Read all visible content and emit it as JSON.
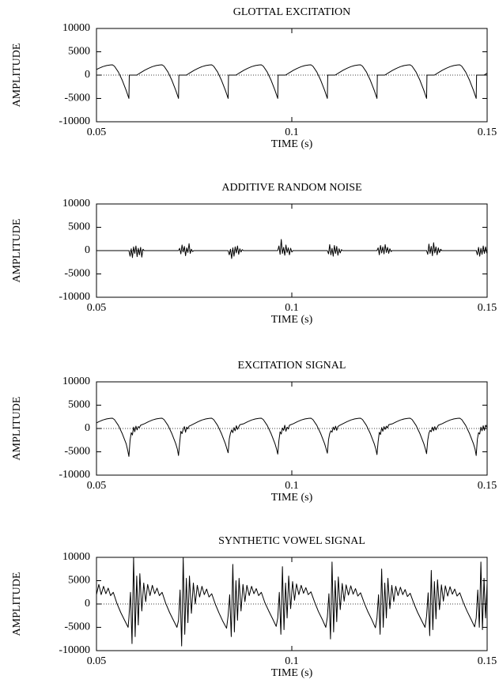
{
  "chart_data": [
    {
      "type": "line",
      "title": "GLOTTAL EXCITATION",
      "xlabel": "TIME (s)",
      "ylabel": "AMPLITUDE",
      "color": "#000000",
      "zero_line": true,
      "xlim": [
        0.05,
        0.15
      ],
      "ylim": [
        -10000,
        10000
      ],
      "xticks": [
        0.05,
        0.1,
        0.15
      ],
      "yticks": [
        -10000,
        -5000,
        0,
        5000,
        10000
      ],
      "x": [
        0.05,
        0.0506,
        0.0516,
        0.0526,
        0.0536,
        0.0541,
        0.0546,
        0.0556,
        0.0566,
        0.0576,
        0.0583,
        0.0584,
        0.0603,
        0.0613,
        0.0623,
        0.0633,
        0.0643,
        0.0653,
        0.0663,
        0.0668,
        0.0673,
        0.0683,
        0.0693,
        0.0703,
        0.071,
        0.0711,
        0.073,
        0.074,
        0.075,
        0.076,
        0.077,
        0.078,
        0.079,
        0.0795,
        0.08,
        0.081,
        0.082,
        0.083,
        0.0837,
        0.0838,
        0.0857,
        0.0867,
        0.0877,
        0.0887,
        0.0897,
        0.0907,
        0.0917,
        0.0922,
        0.0927,
        0.0937,
        0.0947,
        0.0957,
        0.0964,
        0.0965,
        0.0984,
        0.0994,
        0.1004,
        0.1014,
        0.1024,
        0.1034,
        0.1044,
        0.1049,
        0.1054,
        0.1064,
        0.1074,
        0.1084,
        0.1091,
        0.1092,
        0.1111,
        0.1121,
        0.1131,
        0.1141,
        0.1151,
        0.1161,
        0.1171,
        0.1176,
        0.1181,
        0.1191,
        0.1201,
        0.1211,
        0.1218,
        0.1219,
        0.1238,
        0.1248,
        0.1258,
        0.1268,
        0.1278,
        0.1288,
        0.1298,
        0.1303,
        0.1308,
        0.1318,
        0.1328,
        0.1338,
        0.1345,
        0.1346,
        0.1365,
        0.1375,
        0.1385,
        0.1395,
        0.1405,
        0.1415,
        0.1425,
        0.143,
        0.1435,
        0.1445,
        0.1455,
        0.1465,
        0.1472,
        0.1473,
        0.1492,
        0.15
      ],
      "values": [
        1205,
        1458,
        1811,
        2057,
        2184,
        2200,
        1905,
        666,
        -1105,
        -3272,
        -5000,
        0,
        0,
        526,
        1023,
        1458,
        1811,
        2057,
        2184,
        2200,
        1905,
        666,
        -1105,
        -3272,
        -5000,
        0,
        0,
        526,
        1023,
        1458,
        1811,
        2057,
        2184,
        2200,
        1905,
        666,
        -1105,
        -3272,
        -5000,
        0,
        0,
        526,
        1023,
        1458,
        1811,
        2057,
        2184,
        2200,
        1905,
        666,
        -1105,
        -3272,
        -5000,
        0,
        0,
        526,
        1023,
        1458,
        1811,
        2057,
        2184,
        2200,
        1905,
        666,
        -1105,
        -3272,
        -5000,
        0,
        0,
        526,
        1023,
        1458,
        1811,
        2057,
        2184,
        2200,
        1905,
        666,
        -1105,
        -3272,
        -5000,
        0,
        0,
        526,
        1023,
        1458,
        1811,
        2057,
        2184,
        2200,
        1905,
        666,
        -1105,
        -3272,
        -5000,
        0,
        0,
        526,
        1023,
        1458,
        1811,
        2057,
        2184,
        2200,
        1905,
        666,
        -1105,
        -3272,
        -5000,
        0,
        0,
        420
      ]
    },
    {
      "type": "line",
      "title": "ADDITIVE RANDOM NOISE",
      "xlabel": "TIME (s)",
      "ylabel": "AMPLITUDE",
      "color": "#000000",
      "zero_line": true,
      "xlim": [
        0.05,
        0.15
      ],
      "ylim": [
        -10000,
        10000
      ],
      "xticks": [
        0.05,
        0.1,
        0.15
      ],
      "yticks": [
        -10000,
        -5000,
        0,
        5000,
        10000
      ],
      "x": [
        0.05,
        0.0583,
        0.0586,
        0.0589,
        0.0592,
        0.0595,
        0.0598,
        0.0601,
        0.0604,
        0.0607,
        0.061,
        0.0613,
        0.0616,
        0.0619,
        0.0622,
        0.071,
        0.0713,
        0.0716,
        0.0719,
        0.0722,
        0.0725,
        0.0728,
        0.0731,
        0.0734,
        0.0737,
        0.074,
        0.0743,
        0.0746,
        0.0749,
        0.0837,
        0.084,
        0.0843,
        0.0846,
        0.0849,
        0.0852,
        0.0855,
        0.0858,
        0.0861,
        0.0864,
        0.0867,
        0.087,
        0.0873,
        0.0876,
        0.0964,
        0.0967,
        0.097,
        0.0973,
        0.0976,
        0.0979,
        0.0982,
        0.0985,
        0.0988,
        0.0991,
        0.0994,
        0.0997,
        0.1,
        0.1003,
        0.1091,
        0.1094,
        0.1097,
        0.11,
        0.1103,
        0.1106,
        0.1109,
        0.1112,
        0.1115,
        0.1118,
        0.1121,
        0.1124,
        0.1127,
        0.113,
        0.1218,
        0.1221,
        0.1224,
        0.1227,
        0.123,
        0.1233,
        0.1236,
        0.1239,
        0.1242,
        0.1245,
        0.1248,
        0.1251,
        0.1254,
        0.1257,
        0.1345,
        0.1348,
        0.1351,
        0.1354,
        0.1357,
        0.136,
        0.1363,
        0.1366,
        0.1369,
        0.1372,
        0.1375,
        0.1378,
        0.1381,
        0.1384,
        0.1472,
        0.1475,
        0.1478,
        0.1481,
        0.1484,
        0.1487,
        0.149,
        0.1493,
        0.1496,
        0.1499,
        0.15
      ],
      "values": [
        0,
        0,
        -1200,
        400,
        -1500,
        800,
        -600,
        1000,
        -1300,
        500,
        -900,
        700,
        -1400,
        300,
        0,
        0,
        500,
        -700,
        1200,
        -300,
        900,
        -1100,
        600,
        -400,
        1500,
        -600,
        300,
        -200,
        0,
        0,
        -900,
        300,
        -1700,
        600,
        -1200,
        800,
        -500,
        1000,
        -800,
        400,
        -300,
        200,
        0,
        0,
        1000,
        -800,
        2400,
        -600,
        700,
        -1000,
        1200,
        -400,
        600,
        -900,
        500,
        -300,
        0,
        0,
        -700,
        1300,
        -900,
        500,
        -1200,
        1100,
        -600,
        900,
        -1000,
        400,
        -500,
        200,
        0,
        0,
        600,
        -900,
        1100,
        -500,
        800,
        -700,
        1300,
        -400,
        700,
        -600,
        400,
        -200,
        0,
        0,
        -800,
        1400,
        -600,
        900,
        -1100,
        1700,
        -500,
        800,
        -900,
        600,
        -400,
        300,
        0,
        0,
        -900,
        700,
        -1200,
        500,
        -800,
        1000,
        -600,
        800,
        -500,
        300
      ]
    },
    {
      "type": "line",
      "title": "EXCITATION SIGNAL",
      "xlabel": "TIME (s)",
      "ylabel": "AMPLITUDE",
      "color": "#000000",
      "zero_line": true,
      "xlim": [
        0.05,
        0.15
      ],
      "ylim": [
        -10000,
        10000
      ],
      "xticks": [
        0.05,
        0.1,
        0.15
      ],
      "yticks": [
        -10000,
        -5000,
        0,
        5000,
        10000
      ],
      "x": [
        0.05,
        0.0506,
        0.0516,
        0.0526,
        0.0536,
        0.0541,
        0.0546,
        0.0556,
        0.0566,
        0.0576,
        0.058,
        0.0583,
        0.0586,
        0.0589,
        0.0592,
        0.0595,
        0.0598,
        0.0601,
        0.0604,
        0.0607,
        0.061,
        0.0613,
        0.0623,
        0.0633,
        0.0643,
        0.0653,
        0.0663,
        0.0668,
        0.0673,
        0.0683,
        0.0693,
        0.0703,
        0.0707,
        0.071,
        0.0713,
        0.0716,
        0.0719,
        0.0722,
        0.0725,
        0.0728,
        0.0731,
        0.0734,
        0.0737,
        0.074,
        0.075,
        0.076,
        0.077,
        0.078,
        0.079,
        0.0795,
        0.08,
        0.081,
        0.082,
        0.083,
        0.0834,
        0.0837,
        0.084,
        0.0843,
        0.0846,
        0.0849,
        0.0852,
        0.0855,
        0.0858,
        0.0861,
        0.0864,
        0.0867,
        0.0877,
        0.0887,
        0.0897,
        0.0907,
        0.0917,
        0.0922,
        0.0927,
        0.0937,
        0.0947,
        0.0957,
        0.0961,
        0.0964,
        0.0967,
        0.097,
        0.0973,
        0.0976,
        0.0979,
        0.0982,
        0.0985,
        0.0988,
        0.0991,
        0.0994,
        0.1004,
        0.1014,
        0.1024,
        0.1034,
        0.1044,
        0.1049,
        0.1054,
        0.1064,
        0.1074,
        0.1084,
        0.1088,
        0.1091,
        0.1094,
        0.1097,
        0.11,
        0.1103,
        0.1106,
        0.1109,
        0.1112,
        0.1115,
        0.1118,
        0.1121,
        0.1131,
        0.1141,
        0.1151,
        0.1161,
        0.1171,
        0.1176,
        0.1181,
        0.1191,
        0.1201,
        0.1211,
        0.1215,
        0.1218,
        0.1221,
        0.1224,
        0.1227,
        0.123,
        0.1233,
        0.1236,
        0.1239,
        0.1242,
        0.1245,
        0.1248,
        0.1258,
        0.1268,
        0.1278,
        0.1288,
        0.1298,
        0.1303,
        0.1308,
        0.1318,
        0.1328,
        0.1338,
        0.1342,
        0.1345,
        0.1348,
        0.1351,
        0.1354,
        0.1357,
        0.136,
        0.1363,
        0.1366,
        0.1369,
        0.1372,
        0.1375,
        0.1385,
        0.1395,
        0.1405,
        0.1415,
        0.1425,
        0.143,
        0.1435,
        0.1445,
        0.1455,
        0.1465,
        0.1469,
        0.1472,
        0.1475,
        0.1478,
        0.1481,
        0.1484,
        0.1487,
        0.149,
        0.1493,
        0.1496,
        0.1499,
        0.15
      ],
      "values": [
        1205,
        1458,
        1811,
        2057,
        2184,
        2200,
        1905,
        666,
        -1105,
        -3272,
        -4700,
        -6000,
        -2500,
        -900,
        -1400,
        300,
        -700,
        500,
        -300,
        400,
        200,
        700,
        1023,
        1458,
        1811,
        2057,
        2184,
        2200,
        1905,
        666,
        -1105,
        -3272,
        -4400,
        -5800,
        -3000,
        -600,
        -1100,
        -200,
        400,
        -800,
        300,
        -100,
        500,
        600,
        1023,
        1458,
        1811,
        2057,
        2184,
        2200,
        1905,
        666,
        -1105,
        -3272,
        -4400,
        -5200,
        -2200,
        -1000,
        -300,
        -900,
        200,
        -500,
        600,
        -200,
        300,
        800,
        1023,
        1458,
        1811,
        2057,
        2184,
        2200,
        1905,
        666,
        -1105,
        -3272,
        -4400,
        -5500,
        -2600,
        -700,
        -1200,
        100,
        -400,
        700,
        -600,
        300,
        -100,
        700,
        1023,
        1458,
        1811,
        2057,
        2184,
        2200,
        1905,
        666,
        -1105,
        -3272,
        -4400,
        -5300,
        -2400,
        -1100,
        -500,
        -800,
        300,
        -300,
        500,
        -400,
        400,
        600,
        1023,
        1458,
        1811,
        2057,
        2184,
        2200,
        1905,
        666,
        -1105,
        -3272,
        -4400,
        -5600,
        -2800,
        -800,
        -1300,
        200,
        -600,
        400,
        -200,
        500,
        100,
        800,
        1023,
        1458,
        1811,
        2057,
        2184,
        2200,
        1905,
        666,
        -1105,
        -3272,
        -4400,
        -5400,
        -2500,
        -1000,
        -400,
        -700,
        300,
        -500,
        400,
        -300,
        200,
        700,
        1023,
        1458,
        1811,
        2057,
        2184,
        2200,
        1905,
        666,
        -1105,
        -3272,
        -4400,
        -5800,
        -2300,
        -900,
        -1200,
        300,
        -500,
        600,
        -400,
        700,
        300,
        900
      ]
    },
    {
      "type": "line",
      "title": "SYNTHETIC VOWEL SIGNAL",
      "xlabel": "TIME (s)",
      "ylabel": "AMPLITUDE",
      "color": "#000000",
      "zero_line": true,
      "xlim": [
        0.05,
        0.15
      ],
      "ylim": [
        -10000,
        10000
      ],
      "xticks": [
        0.05,
        0.1,
        0.15
      ],
      "yticks": [
        -10000,
        -5000,
        0,
        5000,
        10000
      ],
      "x": [
        0.05,
        0.0506,
        0.0512,
        0.0518,
        0.0524,
        0.053,
        0.0536,
        0.0543,
        0.0552,
        0.0562,
        0.0572,
        0.0581,
        0.0583,
        0.0587,
        0.0591,
        0.0595,
        0.0599,
        0.0603,
        0.0607,
        0.0611,
        0.0616,
        0.0621,
        0.0626,
        0.0631,
        0.0637,
        0.0643,
        0.0649,
        0.0655,
        0.0661,
        0.0668,
        0.0677,
        0.0687,
        0.0697,
        0.0706,
        0.071,
        0.0714,
        0.0718,
        0.0722,
        0.0726,
        0.073,
        0.0734,
        0.0738,
        0.0743,
        0.0748,
        0.0753,
        0.0758,
        0.0764,
        0.077,
        0.0776,
        0.0782,
        0.0788,
        0.0795,
        0.0804,
        0.0814,
        0.0824,
        0.0833,
        0.0837,
        0.0841,
        0.0845,
        0.0849,
        0.0853,
        0.0857,
        0.0861,
        0.0865,
        0.087,
        0.0875,
        0.088,
        0.0885,
        0.0891,
        0.0897,
        0.0903,
        0.0909,
        0.0915,
        0.0922,
        0.0931,
        0.0941,
        0.0951,
        0.096,
        0.0964,
        0.0968,
        0.0972,
        0.0976,
        0.098,
        0.0984,
        0.0988,
        0.0992,
        0.0997,
        0.1002,
        0.1007,
        0.1012,
        0.1018,
        0.1024,
        0.103,
        0.1036,
        0.1042,
        0.1049,
        0.1058,
        0.1068,
        0.1078,
        0.1087,
        0.1091,
        0.1095,
        0.1099,
        0.1103,
        0.1107,
        0.1111,
        0.1115,
        0.1119,
        0.1124,
        0.1129,
        0.1134,
        0.1139,
        0.1145,
        0.1151,
        0.1157,
        0.1163,
        0.1169,
        0.1176,
        0.1185,
        0.1195,
        0.1205,
        0.1214,
        0.1218,
        0.1222,
        0.1226,
        0.123,
        0.1234,
        0.1238,
        0.1242,
        0.1246,
        0.1251,
        0.1256,
        0.1261,
        0.1266,
        0.1272,
        0.1278,
        0.1284,
        0.129,
        0.1296,
        0.1303,
        0.1312,
        0.1322,
        0.1332,
        0.1341,
        0.1345,
        0.1349,
        0.1353,
        0.1357,
        0.1361,
        0.1365,
        0.1369,
        0.1373,
        0.1378,
        0.1383,
        0.1388,
        0.1393,
        0.1399,
        0.1405,
        0.1411,
        0.1417,
        0.1423,
        0.143,
        0.1439,
        0.1449,
        0.1459,
        0.1468,
        0.1472,
        0.1476,
        0.148,
        0.1484,
        0.1488,
        0.1492,
        0.1496,
        0.15
      ],
      "values": [
        2000,
        4200,
        2000,
        3800,
        2200,
        3400,
        1800,
        2500,
        200,
        -1800,
        -3500,
        -5000,
        -3000,
        2500,
        -8500,
        10000,
        -7000,
        6000,
        -4500,
        6500,
        -1500,
        4500,
        500,
        4200,
        1800,
        4000,
        2200,
        3400,
        1800,
        2500,
        200,
        -1800,
        -3500,
        -5000,
        -3500,
        3000,
        -9000,
        10000,
        -6500,
        5500,
        -4000,
        6000,
        -2000,
        4500,
        0,
        4000,
        1500,
        3800,
        2000,
        3200,
        1500,
        2200,
        0,
        -2000,
        -3800,
        -5200,
        -2500,
        2000,
        -7000,
        8500,
        -6000,
        5000,
        -3500,
        5500,
        -1500,
        4200,
        500,
        4000,
        1800,
        3800,
        2200,
        3300,
        1800,
        2500,
        300,
        -1500,
        -3200,
        -4800,
        -3000,
        2500,
        -6500,
        8000,
        -5500,
        4500,
        -3000,
        6000,
        -1000,
        4800,
        800,
        4300,
        2000,
        4000,
        2300,
        3500,
        2000,
        2600,
        500,
        -1600,
        -3300,
        -5000,
        -2800,
        2200,
        -7500,
        9000,
        -6000,
        5000,
        -3800,
        5800,
        -1200,
        4400,
        600,
        4100,
        1900,
        3900,
        2100,
        3300,
        1700,
        2400,
        300,
        -1700,
        -3400,
        -5100,
        -3000,
        2000,
        -6500,
        7500,
        -5000,
        4500,
        -3000,
        5500,
        -1000,
        4000,
        500,
        3800,
        1800,
        3600,
        2000,
        3100,
        1600,
        2300,
        200,
        -1800,
        -3500,
        -5000,
        -2600,
        2400,
        -6800,
        7200,
        -5500,
        4800,
        -3200,
        5200,
        -1200,
        4100,
        600,
        3900,
        1700,
        3700,
        2100,
        3200,
        1700,
        2400,
        300,
        -1600,
        -3300,
        -4900,
        -3000,
        3000,
        -5000,
        9000,
        -5500,
        5500,
        -3000,
        4500
      ]
    }
  ]
}
